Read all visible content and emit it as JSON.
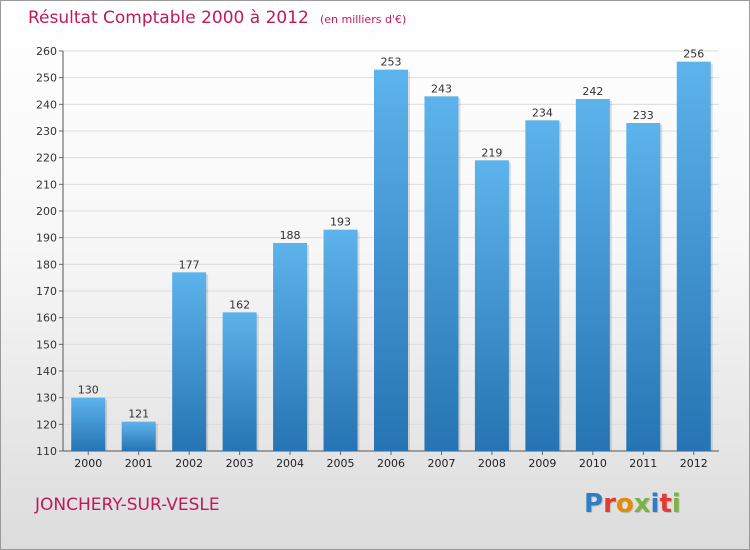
{
  "header": {
    "title": "Résultat Comptable 2000 à 2012",
    "unit": "(en milliers d'€)"
  },
  "footer": {
    "commune": "JONCHERY-SUR-VESLE",
    "logo_text": "Proxiti"
  },
  "colors": {
    "title": "#c2185b",
    "bar_top": "#5db3ec",
    "bar_bottom": "#2674b3",
    "grid": "#dddddd",
    "logo_letters": [
      "#2e7dc6",
      "#e53935",
      "#e58a00",
      "#7cb342",
      "#2e7dc6",
      "#e53935",
      "#7cb342"
    ]
  },
  "chart_data": {
    "type": "bar",
    "categories": [
      "2000",
      "2001",
      "2002",
      "2003",
      "2004",
      "2005",
      "2006",
      "2007",
      "2008",
      "2009",
      "2010",
      "2011",
      "2012"
    ],
    "values": [
      130,
      121,
      177,
      162,
      188,
      193,
      253,
      243,
      219,
      234,
      242,
      233,
      256
    ],
    "ylim": [
      110,
      260
    ],
    "yticks": [
      110,
      120,
      130,
      140,
      150,
      160,
      170,
      180,
      190,
      200,
      210,
      220,
      230,
      240,
      250,
      260
    ],
    "grid": true,
    "title": "Résultat Comptable 2000 à 2012",
    "xlabel": "",
    "ylabel": ""
  }
}
